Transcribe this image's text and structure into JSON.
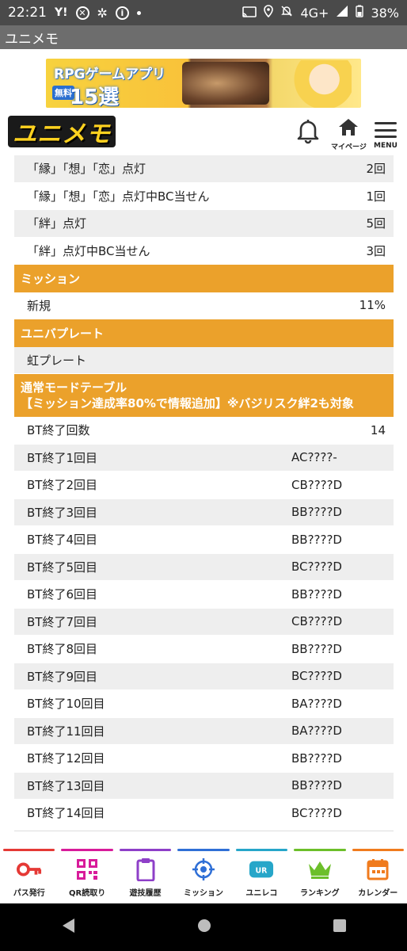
{
  "status_bar": {
    "time": "22:21",
    "network": "4G+",
    "battery": "38%"
  },
  "app_title": "ユニメモ",
  "banner": {
    "line1": "RPGゲームアプリ",
    "badge": "無料",
    "line2": "15選"
  },
  "header": {
    "logo": "ユニメモ",
    "mypage_label": "マイページ",
    "menu_label": "MENU"
  },
  "top_rows": [
    {
      "label": "「縁」「想」「恋」点灯",
      "value": "2回"
    },
    {
      "label": "「縁」「想」「恋」点灯中BC当せん",
      "value": "1回"
    },
    {
      "label": "「絆」点灯",
      "value": "5回"
    },
    {
      "label": "「絆」点灯中BC当せん",
      "value": "3回"
    }
  ],
  "mission_section": {
    "title": "ミッション",
    "row_label": "新規",
    "row_value": "11%"
  },
  "plate_section": {
    "title": "ユニバプレート",
    "row_label": "虹プレート"
  },
  "table_section": {
    "title_line1": "通常モードテーブル",
    "title_line2": "【ミッション達成率80%で情報追加】※バジリスク絆2も対象",
    "count_label": "BT終了回数",
    "count_value": "14",
    "rows": [
      {
        "label": "BT終了1回目",
        "code": "AC????-"
      },
      {
        "label": "BT終了2回目",
        "code": "CB????D"
      },
      {
        "label": "BT終了3回目",
        "code": "BB????D"
      },
      {
        "label": "BT終了4回目",
        "code": "BB????D"
      },
      {
        "label": "BT終了5回目",
        "code": "BC????D"
      },
      {
        "label": "BT終了6回目",
        "code": "BB????D"
      },
      {
        "label": "BT終了7回目",
        "code": "CB????D"
      },
      {
        "label": "BT終了8回目",
        "code": "BB????D"
      },
      {
        "label": "BT終了9回目",
        "code": "BC????D"
      },
      {
        "label": "BT終了10回目",
        "code": "BA????D"
      },
      {
        "label": "BT終了11回目",
        "code": "BA????D"
      },
      {
        "label": "BT終了12回目",
        "code": "BB????D"
      },
      {
        "label": "BT終了13回目",
        "code": "BB????D"
      },
      {
        "label": "BT終了14回目",
        "code": "BC????D"
      }
    ]
  },
  "bottom_nav": [
    {
      "label": "パス発行",
      "icon": "key-icon",
      "color": "#e53935"
    },
    {
      "label": "QR読取り",
      "icon": "qr-code-icon",
      "color": "#d81b9a"
    },
    {
      "label": "遊技履歴",
      "icon": "clipboard-icon",
      "color": "#8e3fc8"
    },
    {
      "label": "ミッション",
      "icon": "target-icon",
      "color": "#2f6fd6"
    },
    {
      "label": "ユニレコ",
      "icon": "unireco-icon",
      "color": "#26a6c9"
    },
    {
      "label": "ランキング",
      "icon": "crown-icon",
      "color": "#6cbf2a"
    },
    {
      "label": "カレンダー",
      "icon": "calendar-icon",
      "color": "#f07b1d"
    }
  ]
}
